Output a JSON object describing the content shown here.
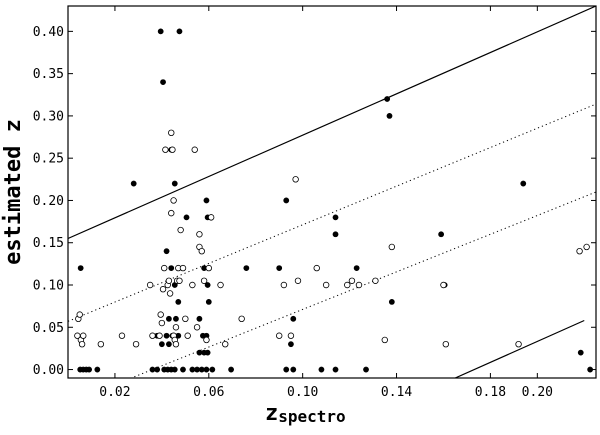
{
  "chart_data": {
    "type": "scatter",
    "title": "",
    "xlabel_main": "z",
    "xlabel_sub": "spectro",
    "ylabel": "estimated z",
    "xlim": [
      0.0,
      0.225
    ],
    "ylim": [
      -0.01,
      0.43
    ],
    "x_ticks": [
      "0.02",
      "0.06",
      "0.10",
      "0.14",
      "0.18",
      "0.20"
    ],
    "y_ticks": [
      "0.00",
      "0.05",
      "0.10",
      "0.15",
      "0.20",
      "0.25",
      "0.30",
      "0.35",
      "0.40"
    ],
    "grid": false,
    "series": [
      {
        "marker": "filled",
        "points": [
          [
            0.0054,
            0.12
          ],
          [
            0.0052,
            0.0
          ],
          [
            0.0065,
            0.0
          ],
          [
            0.0078,
            0.0
          ],
          [
            0.009,
            0.0
          ],
          [
            0.0125,
            0.0
          ],
          [
            0.028,
            0.22
          ],
          [
            0.0395,
            0.4
          ],
          [
            0.0475,
            0.4
          ],
          [
            0.0405,
            0.34
          ],
          [
            0.044,
            0.26
          ],
          [
            0.0455,
            0.22
          ],
          [
            0.0505,
            0.18
          ],
          [
            0.059,
            0.2
          ],
          [
            0.0595,
            0.18
          ],
          [
            0.042,
            0.14
          ],
          [
            0.044,
            0.12
          ],
          [
            0.041,
            0.12
          ],
          [
            0.0455,
            0.1
          ],
          [
            0.047,
            0.08
          ],
          [
            0.043,
            0.06
          ],
          [
            0.046,
            0.06
          ],
          [
            0.042,
            0.04
          ],
          [
            0.0445,
            0.04
          ],
          [
            0.047,
            0.04
          ],
          [
            0.038,
            0.04
          ],
          [
            0.04,
            0.03
          ],
          [
            0.043,
            0.03
          ],
          [
            0.058,
            0.12
          ],
          [
            0.0595,
            0.1
          ],
          [
            0.06,
            0.08
          ],
          [
            0.056,
            0.06
          ],
          [
            0.0575,
            0.04
          ],
          [
            0.059,
            0.04
          ],
          [
            0.056,
            0.02
          ],
          [
            0.058,
            0.02
          ],
          [
            0.0595,
            0.02
          ],
          [
            0.036,
            0.0
          ],
          [
            0.038,
            0.0
          ],
          [
            0.041,
            0.0
          ],
          [
            0.0425,
            0.0
          ],
          [
            0.044,
            0.0
          ],
          [
            0.0455,
            0.0
          ],
          [
            0.049,
            0.0
          ],
          [
            0.053,
            0.0
          ],
          [
            0.055,
            0.0
          ],
          [
            0.057,
            0.0
          ],
          [
            0.059,
            0.0
          ],
          [
            0.0615,
            0.0
          ],
          [
            0.0695,
            0.0
          ],
          [
            0.076,
            0.12
          ],
          [
            0.09,
            0.12
          ],
          [
            0.093,
            0.2
          ],
          [
            0.096,
            0.06
          ],
          [
            0.095,
            0.03
          ],
          [
            0.093,
            0.0
          ],
          [
            0.096,
            0.0
          ],
          [
            0.108,
            0.0
          ],
          [
            0.114,
            0.18
          ],
          [
            0.114,
            0.16
          ],
          [
            0.114,
            0.0
          ],
          [
            0.123,
            0.12
          ],
          [
            0.127,
            0.0
          ],
          [
            0.136,
            0.32
          ],
          [
            0.137,
            0.3
          ],
          [
            0.138,
            0.08
          ],
          [
            0.159,
            0.16
          ],
          [
            0.1605,
            0.1
          ],
          [
            0.194,
            0.22
          ],
          [
            0.2185,
            0.02
          ],
          [
            0.2225,
            0.0
          ]
        ]
      },
      {
        "marker": "open",
        "points": [
          [
            0.004,
            0.04
          ],
          [
            0.0044,
            0.06
          ],
          [
            0.005,
            0.065
          ],
          [
            0.0055,
            0.035
          ],
          [
            0.006,
            0.03
          ],
          [
            0.0065,
            0.04
          ],
          [
            0.014,
            0.03
          ],
          [
            0.023,
            0.04
          ],
          [
            0.029,
            0.03
          ],
          [
            0.035,
            0.1
          ],
          [
            0.036,
            0.04
          ],
          [
            0.039,
            0.04
          ],
          [
            0.0395,
            0.065
          ],
          [
            0.04,
            0.055
          ],
          [
            0.0405,
            0.095
          ],
          [
            0.041,
            0.12
          ],
          [
            0.0415,
            0.26
          ],
          [
            0.0425,
            0.1
          ],
          [
            0.043,
            0.105
          ],
          [
            0.0435,
            0.09
          ],
          [
            0.044,
            0.185
          ],
          [
            0.044,
            0.28
          ],
          [
            0.0445,
            0.26
          ],
          [
            0.045,
            0.04
          ],
          [
            0.045,
            0.2
          ],
          [
            0.0455,
            0.035
          ],
          [
            0.046,
            0.03
          ],
          [
            0.046,
            0.05
          ],
          [
            0.0465,
            0.105
          ],
          [
            0.047,
            0.12
          ],
          [
            0.0475,
            0.105
          ],
          [
            0.048,
            0.165
          ],
          [
            0.049,
            0.12
          ],
          [
            0.05,
            0.06
          ],
          [
            0.051,
            0.04
          ],
          [
            0.053,
            0.1
          ],
          [
            0.054,
            0.26
          ],
          [
            0.055,
            0.05
          ],
          [
            0.056,
            0.16
          ],
          [
            0.056,
            0.145
          ],
          [
            0.057,
            0.14
          ],
          [
            0.058,
            0.105
          ],
          [
            0.059,
            0.035
          ],
          [
            0.06,
            0.12
          ],
          [
            0.061,
            0.18
          ],
          [
            0.065,
            0.1
          ],
          [
            0.067,
            0.03
          ],
          [
            0.074,
            0.06
          ],
          [
            0.09,
            0.04
          ],
          [
            0.092,
            0.1
          ],
          [
            0.095,
            0.04
          ],
          [
            0.097,
            0.225
          ],
          [
            0.098,
            0.105
          ],
          [
            0.106,
            0.12
          ],
          [
            0.11,
            0.1
          ],
          [
            0.119,
            0.1
          ],
          [
            0.121,
            0.105
          ],
          [
            0.124,
            0.1
          ],
          [
            0.131,
            0.105
          ],
          [
            0.135,
            0.035
          ],
          [
            0.138,
            0.145
          ],
          [
            0.16,
            0.1
          ],
          [
            0.161,
            0.03
          ],
          [
            0.192,
            0.03
          ],
          [
            0.218,
            0.14
          ],
          [
            0.221,
            0.145
          ]
        ]
      }
    ],
    "lines": [
      {
        "style": "solid",
        "from": [
          0.0,
          0.155
        ],
        "to": [
          0.225,
          0.43
        ]
      },
      {
        "style": "dotted",
        "from": [
          0.0,
          0.057
        ],
        "to": [
          0.225,
          0.314
        ]
      },
      {
        "style": "dotted",
        "from": [
          0.0,
          -0.04
        ],
        "to": [
          0.225,
          0.21
        ]
      },
      {
        "style": "solid",
        "from": [
          0.165,
          -0.01
        ],
        "to": [
          0.22,
          0.058
        ]
      }
    ]
  }
}
